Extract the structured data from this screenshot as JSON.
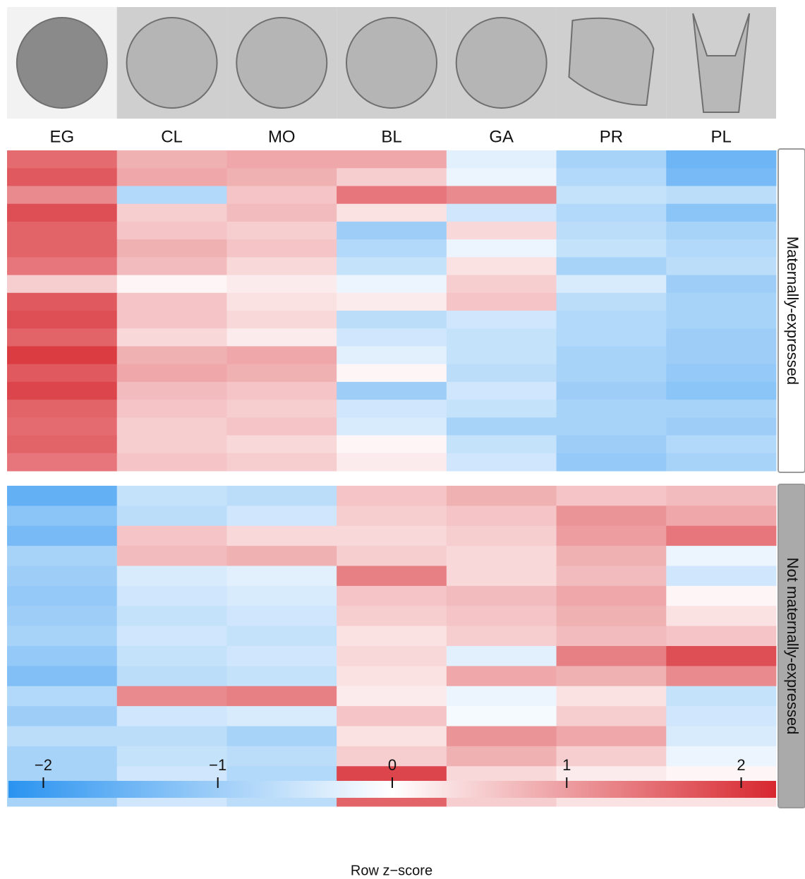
{
  "chart_data": {
    "type": "heatmap",
    "columns": [
      "EG",
      "CL",
      "MO",
      "BL",
      "GA",
      "PR",
      "PL"
    ],
    "colors": [
      "#2a93f0",
      "#ffffff",
      "#d7282f"
    ],
    "groups": [
      {
        "name": "Maternally-expressed",
        "rows": [
          [
            1.5,
            0.8,
            0.9,
            0.9,
            -0.3,
            -0.9,
            -1.5
          ],
          [
            1.7,
            0.9,
            0.8,
            0.5,
            -0.2,
            -0.8,
            -1.4
          ],
          [
            1.2,
            -0.8,
            0.6,
            1.4,
            1.2,
            -0.6,
            -0.7
          ],
          [
            1.8,
            0.5,
            0.7,
            0.3,
            -0.5,
            -0.8,
            -1.2
          ],
          [
            1.6,
            0.6,
            0.5,
            -1.0,
            0.4,
            -0.7,
            -0.9
          ],
          [
            1.6,
            0.8,
            0.6,
            -0.8,
            -0.2,
            -0.6,
            -0.8
          ],
          [
            1.4,
            0.7,
            0.4,
            -0.6,
            0.3,
            -0.9,
            -0.7
          ],
          [
            0.5,
            0.1,
            0.2,
            -0.2,
            0.5,
            -0.4,
            -1.0
          ],
          [
            1.7,
            0.6,
            0.3,
            0.2,
            0.6,
            -0.7,
            -0.9
          ],
          [
            1.8,
            0.6,
            0.4,
            -0.7,
            -0.5,
            -0.8,
            -0.9
          ],
          [
            1.6,
            0.4,
            0.2,
            -0.5,
            -0.6,
            -0.8,
            -1.0
          ],
          [
            2.0,
            0.8,
            0.9,
            -0.3,
            -0.6,
            -0.9,
            -1.0
          ],
          [
            1.7,
            0.9,
            0.8,
            0.1,
            -0.7,
            -0.9,
            -1.1
          ],
          [
            1.9,
            0.7,
            0.6,
            -1.0,
            -0.5,
            -1.0,
            -1.2
          ],
          [
            1.6,
            0.6,
            0.5,
            -0.5,
            -0.6,
            -0.9,
            -0.9
          ],
          [
            1.5,
            0.5,
            0.6,
            -0.4,
            -0.9,
            -0.9,
            -1.0
          ],
          [
            1.6,
            0.5,
            0.4,
            0.1,
            -0.6,
            -1.0,
            -0.8
          ],
          [
            1.4,
            0.6,
            0.5,
            0.2,
            -0.5,
            -1.1,
            -0.9
          ]
        ]
      },
      {
        "name": "Not maternally-expressed",
        "rows": [
          [
            -1.6,
            -0.6,
            -0.7,
            0.6,
            0.8,
            0.6,
            0.7
          ],
          [
            -1.2,
            -0.7,
            -0.5,
            0.5,
            0.6,
            1.1,
            0.9
          ],
          [
            -1.4,
            0.6,
            0.4,
            0.4,
            0.5,
            1.0,
            1.4
          ],
          [
            -0.9,
            0.7,
            0.8,
            0.5,
            0.4,
            0.8,
            -0.2
          ],
          [
            -1.0,
            -0.4,
            -0.3,
            1.3,
            0.4,
            0.7,
            -0.5
          ],
          [
            -1.1,
            -0.5,
            -0.4,
            0.6,
            0.7,
            0.9,
            0.1
          ],
          [
            -1.0,
            -0.6,
            -0.5,
            0.5,
            0.6,
            0.8,
            0.3
          ],
          [
            -0.9,
            -0.5,
            -0.6,
            0.3,
            0.5,
            0.7,
            0.6
          ],
          [
            -1.1,
            -0.6,
            -0.5,
            0.4,
            -0.3,
            1.3,
            1.8
          ],
          [
            -1.3,
            -0.7,
            -0.6,
            0.3,
            0.9,
            0.8,
            1.2
          ],
          [
            -0.8,
            1.2,
            1.3,
            0.2,
            -0.2,
            0.3,
            -0.6
          ],
          [
            -1.0,
            -0.5,
            -0.4,
            0.6,
            -0.1,
            0.5,
            -0.5
          ],
          [
            -0.7,
            -0.7,
            -0.9,
            0.3,
            1.1,
            0.9,
            -0.4
          ],
          [
            -0.9,
            -0.6,
            -0.7,
            0.5,
            0.8,
            0.5,
            -0.2
          ],
          [
            -0.9,
            -0.5,
            -0.8,
            1.9,
            0.4,
            0.2,
            0.1
          ],
          [
            -0.9,
            -0.5,
            -0.7,
            1.6,
            0.5,
            0.3,
            0.3
          ]
        ]
      }
    ],
    "colorbar": {
      "title": "Row z−score",
      "xlim": [
        -2.2,
        2.2
      ],
      "xticks": [
        {
          "value": -2,
          "label": "−2"
        },
        {
          "value": -1,
          "label": "−1"
        },
        0,
        1,
        2
      ]
    }
  }
}
